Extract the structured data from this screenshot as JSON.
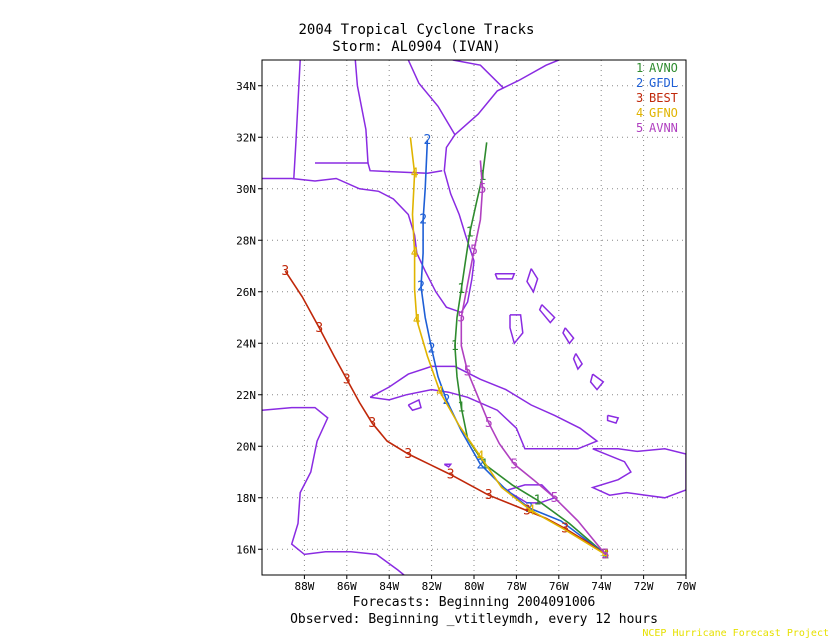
{
  "header": {
    "title": "2004 Tropical Cyclone Tracks",
    "subtitle": "Storm: AL0904 (IVAN)"
  },
  "footer": {
    "forecast_line": "Forecasts: Beginning 2004091006",
    "observed_line": "Observed: Beginning _vtitleymdh, every 12 hours",
    "credit": "NCEP Hurricane Forecast Project"
  },
  "colors": {
    "land_outline": "#8a2be2",
    "grid": "#888888",
    "AVNO": "#2e8b2e",
    "GFDL": "#1e5fd6",
    "BEST": "#c0280a",
    "GFNO": "#e0b400",
    "AVNN": "#b040c0"
  },
  "chart_data": {
    "type": "map",
    "xlim": [
      -90,
      -70
    ],
    "ylim": [
      15,
      35
    ],
    "lon_ticks": [
      {
        "value": -88,
        "label": "88W"
      },
      {
        "value": -86,
        "label": "86W"
      },
      {
        "value": -84,
        "label": "84W"
      },
      {
        "value": -82,
        "label": "82W"
      },
      {
        "value": -80,
        "label": "80W"
      },
      {
        "value": -78,
        "label": "78W"
      },
      {
        "value": -76,
        "label": "76W"
      },
      {
        "value": -74,
        "label": "74W"
      },
      {
        "value": -72,
        "label": "72W"
      },
      {
        "value": -70,
        "label": "70W"
      }
    ],
    "lat_ticks": [
      {
        "value": 16,
        "label": "16N"
      },
      {
        "value": 18,
        "label": "18N"
      },
      {
        "value": 20,
        "label": "20N"
      },
      {
        "value": 22,
        "label": "22N"
      },
      {
        "value": 24,
        "label": "24N"
      },
      {
        "value": 26,
        "label": "26N"
      },
      {
        "value": 28,
        "label": "28N"
      },
      {
        "value": 30,
        "label": "30N"
      },
      {
        "value": 32,
        "label": "32N"
      },
      {
        "value": 34,
        "label": "34N"
      }
    ],
    "grid": true,
    "legend_position": "top-right",
    "series": [
      {
        "id": "1",
        "name": "AVNO",
        "color": "#2e8b2e",
        "marker": "1",
        "points": [
          [
            -73.8,
            15.8
          ],
          [
            -75.5,
            17.0
          ],
          [
            -77.0,
            17.9
          ],
          [
            -78.2,
            18.5
          ],
          [
            -79.5,
            19.3
          ],
          [
            -80.3,
            20.3
          ],
          [
            -80.6,
            21.5
          ],
          [
            -80.8,
            22.7
          ],
          [
            -80.9,
            23.9
          ],
          [
            -80.8,
            25.0
          ],
          [
            -80.6,
            26.1
          ],
          [
            -80.4,
            27.2
          ],
          [
            -80.2,
            28.3
          ],
          [
            -79.9,
            29.4
          ],
          [
            -79.6,
            30.5
          ],
          [
            -79.4,
            31.8
          ]
        ],
        "marker_every": 2
      },
      {
        "id": "2",
        "name": "GFDL",
        "color": "#1e5fd6",
        "marker": "2",
        "points": [
          [
            -73.8,
            15.8
          ],
          [
            -75.9,
            17.1
          ],
          [
            -77.4,
            17.6
          ],
          [
            -78.6,
            18.4
          ],
          [
            -79.7,
            19.3
          ],
          [
            -80.6,
            20.6
          ],
          [
            -81.3,
            21.8
          ],
          [
            -81.7,
            22.7
          ],
          [
            -82.0,
            23.8
          ],
          [
            -82.3,
            25.0
          ],
          [
            -82.5,
            26.2
          ],
          [
            -82.4,
            27.5
          ],
          [
            -82.4,
            28.8
          ],
          [
            -82.3,
            30.0
          ],
          [
            -82.2,
            31.9
          ]
        ],
        "marker_every": 2
      },
      {
        "id": "3",
        "name": "BEST",
        "color": "#c0280a",
        "marker": "3",
        "points": [
          [
            -73.8,
            15.8
          ],
          [
            -74.7,
            16.3
          ],
          [
            -75.7,
            16.8
          ],
          [
            -76.6,
            17.2
          ],
          [
            -77.5,
            17.5
          ],
          [
            -78.4,
            17.8
          ],
          [
            -79.3,
            18.1
          ],
          [
            -80.2,
            18.5
          ],
          [
            -81.1,
            18.9
          ],
          [
            -82.1,
            19.3
          ],
          [
            -83.1,
            19.7
          ],
          [
            -84.1,
            20.2
          ],
          [
            -84.8,
            20.9
          ],
          [
            -85.4,
            21.7
          ],
          [
            -86.0,
            22.6
          ],
          [
            -86.6,
            23.5
          ],
          [
            -87.3,
            24.6
          ],
          [
            -88.1,
            25.8
          ],
          [
            -88.9,
            26.8
          ]
        ],
        "marker_every": 2
      },
      {
        "id": "4",
        "name": "GFNO",
        "color": "#e0b400",
        "marker": "4",
        "points": [
          [
            -73.8,
            15.8
          ],
          [
            -75.8,
            16.8
          ],
          [
            -77.3,
            17.5
          ],
          [
            -78.7,
            18.4
          ],
          [
            -79.7,
            19.6
          ],
          [
            -80.7,
            20.8
          ],
          [
            -81.6,
            22.1
          ],
          [
            -82.2,
            23.5
          ],
          [
            -82.7,
            24.9
          ],
          [
            -82.8,
            26.1
          ],
          [
            -82.8,
            27.5
          ],
          [
            -82.9,
            29.0
          ],
          [
            -82.8,
            30.6
          ],
          [
            -83.0,
            32.0
          ]
        ],
        "marker_every": 2
      },
      {
        "id": "5",
        "name": "AVNN",
        "color": "#b040c0",
        "marker": "5",
        "points": [
          [
            -73.8,
            15.8
          ],
          [
            -75.1,
            17.1
          ],
          [
            -76.2,
            18.0
          ],
          [
            -77.2,
            18.7
          ],
          [
            -78.1,
            19.3
          ],
          [
            -78.8,
            20.1
          ],
          [
            -79.3,
            20.9
          ],
          [
            -79.8,
            21.9
          ],
          [
            -80.3,
            22.9
          ],
          [
            -80.6,
            23.9
          ],
          [
            -80.6,
            25.0
          ],
          [
            -80.3,
            26.3
          ],
          [
            -80.0,
            27.6
          ],
          [
            -79.7,
            28.8
          ],
          [
            -79.6,
            30.0
          ],
          [
            -79.7,
            31.1
          ]
        ],
        "marker_every": 2
      }
    ],
    "land_outlines": [
      {
        "name": "north-america-coast",
        "points": [
          [
            -90,
            30.4
          ],
          [
            -88.6,
            30.4
          ],
          [
            -87.5,
            30.3
          ],
          [
            -86.5,
            30.4
          ],
          [
            -85.4,
            30.0
          ],
          [
            -84.5,
            29.9
          ],
          [
            -83.8,
            29.6
          ],
          [
            -83.1,
            29.0
          ],
          [
            -82.8,
            28.2
          ],
          [
            -82.7,
            27.5
          ],
          [
            -82.3,
            26.8
          ],
          [
            -81.8,
            26.0
          ],
          [
            -81.3,
            25.4
          ],
          [
            -80.6,
            25.2
          ],
          [
            -80.3,
            25.6
          ],
          [
            -80.1,
            26.5
          ],
          [
            -80.0,
            27.2
          ],
          [
            -80.4,
            28.2
          ],
          [
            -80.7,
            29.0
          ],
          [
            -81.1,
            29.8
          ],
          [
            -81.4,
            30.7
          ],
          [
            -81.3,
            31.6
          ],
          [
            -80.9,
            32.1
          ],
          [
            -79.8,
            32.9
          ],
          [
            -78.9,
            33.8
          ],
          [
            -77.9,
            34.2
          ],
          [
            -76.6,
            34.8
          ],
          [
            -76.0,
            35.0
          ]
        ]
      },
      {
        "name": "cuba",
        "points": [
          [
            -84.9,
            21.9
          ],
          [
            -84.0,
            22.3
          ],
          [
            -83.1,
            22.8
          ],
          [
            -82.0,
            23.1
          ],
          [
            -80.9,
            23.1
          ],
          [
            -79.7,
            22.6
          ],
          [
            -78.5,
            22.2
          ],
          [
            -77.3,
            21.6
          ],
          [
            -76.2,
            21.2
          ],
          [
            -75.0,
            20.7
          ],
          [
            -74.2,
            20.2
          ],
          [
            -75.1,
            19.9
          ],
          [
            -76.3,
            19.9
          ],
          [
            -77.6,
            19.9
          ],
          [
            -78.0,
            20.7
          ],
          [
            -78.9,
            21.4
          ],
          [
            -80.3,
            21.9
          ],
          [
            -81.2,
            22.1
          ],
          [
            -82.0,
            22.2
          ],
          [
            -83.2,
            22.0
          ],
          [
            -84.0,
            21.8
          ],
          [
            -84.9,
            21.9
          ]
        ]
      },
      {
        "name": "hispaniola",
        "points": [
          [
            -74.4,
            19.9
          ],
          [
            -73.2,
            19.9
          ],
          [
            -72.3,
            19.8
          ],
          [
            -71.0,
            19.9
          ],
          [
            -70.0,
            19.7
          ],
          [
            -70.0,
            18.3
          ],
          [
            -71.0,
            18.0
          ],
          [
            -71.9,
            18.1
          ],
          [
            -72.8,
            18.2
          ],
          [
            -73.6,
            18.1
          ],
          [
            -74.4,
            18.4
          ],
          [
            -73.2,
            18.7
          ],
          [
            -72.6,
            19.0
          ],
          [
            -72.9,
            19.4
          ],
          [
            -74.4,
            19.9
          ]
        ]
      },
      {
        "name": "jamaica",
        "points": [
          [
            -78.4,
            18.3
          ],
          [
            -77.6,
            18.5
          ],
          [
            -76.8,
            18.5
          ],
          [
            -76.2,
            18.0
          ],
          [
            -76.9,
            17.8
          ],
          [
            -77.5,
            17.8
          ],
          [
            -78.3,
            18.2
          ],
          [
            -78.4,
            18.3
          ]
        ]
      },
      {
        "name": "central-america",
        "points": [
          [
            -90,
            21.4
          ],
          [
            -88.6,
            21.5
          ],
          [
            -87.5,
            21.5
          ],
          [
            -86.9,
            21.1
          ],
          [
            -87.4,
            20.2
          ],
          [
            -87.7,
            19.0
          ],
          [
            -88.2,
            18.2
          ],
          [
            -88.3,
            17.0
          ],
          [
            -88.6,
            16.2
          ],
          [
            -88.0,
            15.8
          ],
          [
            -87.0,
            15.9
          ],
          [
            -85.8,
            15.9
          ],
          [
            -84.6,
            15.8
          ],
          [
            -83.6,
            15.2
          ],
          [
            -83.3,
            15.0
          ]
        ]
      },
      {
        "name": "isle-of-youth",
        "points": [
          [
            -83.1,
            21.6
          ],
          [
            -82.6,
            21.8
          ],
          [
            -82.5,
            21.5
          ],
          [
            -82.9,
            21.4
          ],
          [
            -83.1,
            21.6
          ]
        ]
      },
      {
        "name": "cayman",
        "points": [
          [
            -81.4,
            19.3
          ],
          [
            -81.1,
            19.3
          ],
          [
            -81.2,
            19.2
          ],
          [
            -81.4,
            19.3
          ]
        ]
      },
      {
        "name": "andros",
        "points": [
          [
            -78.3,
            25.1
          ],
          [
            -77.8,
            25.1
          ],
          [
            -77.7,
            24.4
          ],
          [
            -78.1,
            24.0
          ],
          [
            -78.3,
            24.6
          ],
          [
            -78.3,
            25.1
          ]
        ]
      },
      {
        "name": "grand-bahama",
        "points": [
          [
            -79.0,
            26.7
          ],
          [
            -78.1,
            26.7
          ],
          [
            -78.2,
            26.5
          ],
          [
            -78.9,
            26.5
          ],
          [
            -79.0,
            26.7
          ]
        ]
      },
      {
        "name": "abaco",
        "points": [
          [
            -77.3,
            26.9
          ],
          [
            -77.0,
            26.5
          ],
          [
            -77.2,
            26.0
          ],
          [
            -77.5,
            26.4
          ],
          [
            -77.3,
            26.9
          ]
        ]
      },
      {
        "name": "eleuthera",
        "points": [
          [
            -76.8,
            25.5
          ],
          [
            -76.2,
            25.0
          ],
          [
            -76.4,
            24.8
          ],
          [
            -76.9,
            25.3
          ],
          [
            -76.8,
            25.5
          ]
        ]
      },
      {
        "name": "cat-island",
        "points": [
          [
            -75.7,
            24.6
          ],
          [
            -75.3,
            24.2
          ],
          [
            -75.5,
            24.0
          ],
          [
            -75.8,
            24.4
          ],
          [
            -75.7,
            24.6
          ]
        ]
      },
      {
        "name": "long-island",
        "points": [
          [
            -75.2,
            23.6
          ],
          [
            -74.9,
            23.2
          ],
          [
            -75.1,
            23.0
          ],
          [
            -75.3,
            23.4
          ],
          [
            -75.2,
            23.6
          ]
        ]
      },
      {
        "name": "acklins",
        "points": [
          [
            -74.4,
            22.8
          ],
          [
            -73.9,
            22.5
          ],
          [
            -74.2,
            22.2
          ],
          [
            -74.5,
            22.5
          ],
          [
            -74.4,
            22.8
          ]
        ]
      },
      {
        "name": "inagua",
        "points": [
          [
            -73.7,
            21.2
          ],
          [
            -73.2,
            21.1
          ],
          [
            -73.3,
            20.9
          ],
          [
            -73.7,
            21.0
          ],
          [
            -73.7,
            21.2
          ]
        ]
      },
      {
        "name": "state-border-ms-al",
        "points": [
          [
            -88.5,
            30.4
          ],
          [
            -88.4,
            31.8
          ],
          [
            -88.2,
            35.0
          ]
        ]
      },
      {
        "name": "state-border-al-ga",
        "points": [
          [
            -85.0,
            31.0
          ],
          [
            -85.1,
            32.3
          ],
          [
            -85.5,
            34.0
          ],
          [
            -85.6,
            35.0
          ]
        ]
      },
      {
        "name": "state-border-fl",
        "points": [
          [
            -87.5,
            31.0
          ],
          [
            -85.0,
            31.0
          ],
          [
            -84.9,
            30.7
          ],
          [
            -82.2,
            30.6
          ],
          [
            -81.5,
            30.7
          ]
        ]
      },
      {
        "name": "state-border-ga-sc",
        "points": [
          [
            -80.9,
            32.1
          ],
          [
            -81.7,
            33.2
          ],
          [
            -82.6,
            34.1
          ],
          [
            -83.1,
            35.0
          ]
        ]
      },
      {
        "name": "state-border-sc-nc",
        "points": [
          [
            -78.6,
            33.9
          ],
          [
            -79.7,
            34.8
          ],
          [
            -81.0,
            35.0
          ]
        ]
      }
    ]
  }
}
